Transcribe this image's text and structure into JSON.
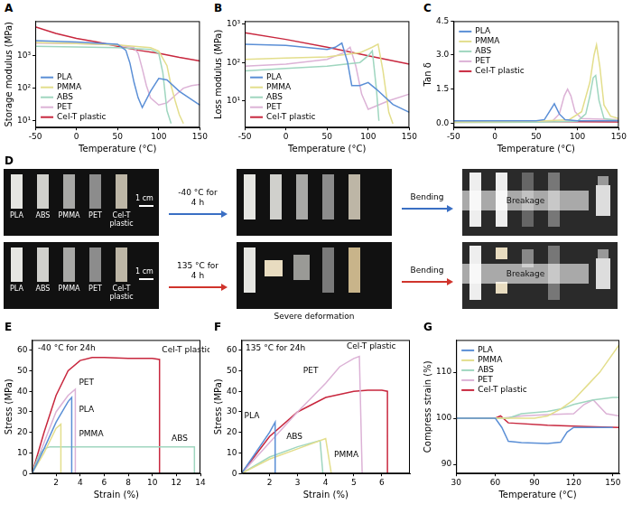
{
  "chart_data": [
    {
      "panel": "A",
      "type": "line",
      "x_label": "Temperature (°C)",
      "y_label": "Storage modulus (MPa)",
      "log": "y",
      "grid": false,
      "legend": "bottom-left",
      "xlim": [
        -50,
        150
      ],
      "xticks": [
        -50,
        0,
        50,
        100,
        150
      ],
      "ylim": [
        6,
        12000
      ],
      "yticks": [
        {
          "value": 10,
          "label": "10¹"
        },
        {
          "value": 100,
          "label": "10²"
        },
        {
          "value": 1000,
          "label": "10³"
        }
      ],
      "series": [
        {
          "name": "PLA",
          "color": "#5b8fd6",
          "x": [
            -50,
            0,
            50,
            60,
            65,
            70,
            75,
            80,
            90,
            100,
            110,
            125,
            150
          ],
          "values": [
            3000,
            2700,
            2300,
            1500,
            600,
            150,
            50,
            25,
            80,
            200,
            180,
            80,
            30
          ]
        },
        {
          "name": "PMMA",
          "color": "#e3de8c",
          "x": [
            -50,
            0,
            50,
            90,
            100,
            110,
            115,
            120,
            125,
            130
          ],
          "values": [
            2600,
            2400,
            2200,
            1800,
            1400,
            500,
            120,
            40,
            15,
            8
          ]
        },
        {
          "name": "ABS",
          "color": "#9fd6bf",
          "x": [
            -50,
            0,
            50,
            90,
            100,
            105,
            110,
            115
          ],
          "values": [
            2000,
            1900,
            1800,
            1600,
            1200,
            300,
            20,
            8
          ]
        },
        {
          "name": "PET",
          "color": "#dcb2d6",
          "x": [
            -50,
            0,
            50,
            70,
            75,
            80,
            85,
            90,
            100,
            110,
            120,
            130,
            140,
            150
          ],
          "values": [
            2500,
            2400,
            2200,
            1800,
            1200,
            400,
            120,
            50,
            30,
            35,
            60,
            100,
            120,
            130
          ]
        },
        {
          "name": "Cel-T plastic",
          "color": "#c8273e",
          "x": [
            -50,
            -25,
            0,
            25,
            50,
            75,
            100,
            125,
            150
          ],
          "values": [
            8000,
            5000,
            3500,
            2700,
            2000,
            1500,
            1200,
            900,
            700
          ]
        }
      ]
    },
    {
      "panel": "B",
      "type": "line",
      "x_label": "Temperature (°C)",
      "y_label": "Loss modulus (MPa)",
      "log": "y",
      "grid": false,
      "legend": "bottom-left",
      "xlim": [
        -50,
        150
      ],
      "xticks": [
        -50,
        0,
        50,
        100,
        150
      ],
      "ylim": [
        2,
        1200
      ],
      "yticks": [
        {
          "value": 10,
          "label": "10¹"
        },
        {
          "value": 100,
          "label": "10²"
        },
        {
          "value": 1000,
          "label": "10³"
        }
      ],
      "series": [
        {
          "name": "PLA",
          "color": "#5b8fd6",
          "x": [
            -50,
            0,
            50,
            60,
            68,
            75,
            80,
            90,
            100,
            110,
            130,
            150
          ],
          "values": [
            300,
            280,
            220,
            250,
            320,
            100,
            25,
            25,
            30,
            20,
            8,
            5
          ]
        },
        {
          "name": "PMMA",
          "color": "#e3de8c",
          "x": [
            -50,
            0,
            50,
            90,
            105,
            112,
            118,
            125,
            130
          ],
          "values": [
            120,
            130,
            140,
            180,
            250,
            300,
            60,
            5,
            2.5
          ]
        },
        {
          "name": "ABS",
          "color": "#9fd6bf",
          "x": [
            -50,
            0,
            50,
            90,
            100,
            105,
            110,
            113
          ],
          "values": [
            60,
            70,
            80,
            100,
            150,
            200,
            20,
            3
          ]
        },
        {
          "name": "PET",
          "color": "#dcb2d6",
          "x": [
            -50,
            0,
            50,
            70,
            78,
            85,
            92,
            100,
            125,
            150
          ],
          "values": [
            80,
            90,
            120,
            180,
            250,
            80,
            15,
            6,
            10,
            15
          ]
        },
        {
          "name": "Cel-T plastic",
          "color": "#c8273e",
          "x": [
            -50,
            0,
            50,
            100,
            150
          ],
          "values": [
            600,
            400,
            250,
            150,
            90
          ]
        }
      ]
    },
    {
      "panel": "C",
      "type": "line",
      "x_label": "Temperature (°C)",
      "y_label": "Tan δ",
      "grid": false,
      "legend": "top-left",
      "xlim": [
        -50,
        150
      ],
      "xticks": [
        -50,
        0,
        50,
        100,
        150
      ],
      "ylim": [
        -0.2,
        4.5
      ],
      "yticks": [
        {
          "value": 0,
          "label": "0.0"
        },
        1.5,
        {
          "value": 3,
          "label": "3.0"
        },
        4.5
      ],
      "series": [
        {
          "name": "PLA",
          "color": "#5b8fd6",
          "x": [
            -50,
            0,
            50,
            60,
            66,
            72,
            78,
            85,
            100,
            150
          ],
          "values": [
            0.1,
            0.1,
            0.1,
            0.15,
            0.5,
            0.85,
            0.4,
            0.15,
            0.1,
            0.1
          ]
        },
        {
          "name": "PMMA",
          "color": "#e3de8c",
          "x": [
            -50,
            0,
            50,
            90,
            105,
            115,
            120,
            123,
            127,
            132,
            140,
            150
          ],
          "values": [
            0.05,
            0.06,
            0.08,
            0.15,
            0.5,
            1.8,
            3.0,
            3.45,
            2.5,
            0.8,
            0.3,
            0.2
          ]
        },
        {
          "name": "ABS",
          "color": "#9fd6bf",
          "x": [
            -50,
            0,
            50,
            100,
            110,
            115,
            119,
            122,
            126,
            132,
            150
          ],
          "values": [
            0.03,
            0.03,
            0.04,
            0.08,
            0.4,
            1.2,
            2.0,
            2.1,
            1.0,
            0.2,
            0.1
          ]
        },
        {
          "name": "PET",
          "color": "#dcb2d6",
          "x": [
            -50,
            0,
            50,
            70,
            78,
            84,
            88,
            92,
            97,
            105,
            150
          ],
          "values": [
            0.03,
            0.04,
            0.05,
            0.1,
            0.4,
            1.2,
            1.5,
            1.2,
            0.5,
            0.2,
            0.15
          ]
        },
        {
          "name": "Cel-T plastic",
          "color": "#c8273e",
          "x": [
            -50,
            0,
            50,
            100,
            150
          ],
          "values": [
            0.1,
            0.08,
            0.07,
            0.06,
            0.05
          ]
        }
      ]
    },
    {
      "panel": "E",
      "type": "line",
      "x_label": "Strain (%)",
      "y_label": "Stress (MPa)",
      "grid": false,
      "xlim": [
        0,
        14
      ],
      "xticks": [
        2,
        4,
        6,
        8,
        10,
        12,
        14
      ],
      "ylim": [
        0,
        65
      ],
      "yticks": [
        0,
        10,
        20,
        30,
        40,
        50,
        60
      ],
      "annotations": [
        {
          "text": "-40 °C for 24h",
          "x": 0.5,
          "y": 61
        },
        {
          "text": "PET",
          "x": 3.9,
          "y": 44
        },
        {
          "text": "PLA",
          "x": 3.9,
          "y": 31
        },
        {
          "text": "PMMA",
          "x": 3.9,
          "y": 19
        },
        {
          "text": "Cel-T plastic",
          "x": 10.8,
          "y": 60
        },
        {
          "text": "ABS",
          "x": 11.6,
          "y": 17
        }
      ],
      "series": [
        {
          "name": "PLA",
          "color": "#5b8fd6",
          "x": [
            0,
            1,
            2,
            3,
            3.3,
            3.3
          ],
          "values": [
            0,
            12,
            25,
            35,
            37,
            0
          ]
        },
        {
          "name": "PMMA",
          "color": "#e3de8c",
          "x": [
            0,
            1,
            2,
            2.4,
            2.4
          ],
          "values": [
            0,
            10,
            22,
            24,
            0
          ]
        },
        {
          "name": "ABS",
          "color": "#9fd6bf",
          "x": [
            0,
            0.5,
            1,
            1.5,
            2,
            6,
            10,
            13.5,
            13.5
          ],
          "values": [
            0,
            8,
            12,
            13,
            13,
            13,
            13,
            13,
            0
          ]
        },
        {
          "name": "PET",
          "color": "#dcb2d6",
          "x": [
            0,
            1,
            2,
            3,
            3.6,
            3.6
          ],
          "values": [
            0,
            15,
            30,
            38,
            41,
            0
          ]
        },
        {
          "name": "Cel-T plastic",
          "color": "#c8273e",
          "x": [
            0,
            1,
            2,
            3,
            4,
            5,
            6,
            8,
            10,
            10.6,
            10.6
          ],
          "values": [
            0,
            20,
            38,
            50,
            55,
            56.5,
            56.5,
            56,
            56,
            55.5,
            0
          ]
        }
      ]
    },
    {
      "panel": "F",
      "type": "line",
      "x_label": "Strain (%)",
      "y_label": "Stress (MPa)",
      "grid": false,
      "xlim": [
        1,
        7
      ],
      "xticks": [
        2,
        3,
        4,
        5,
        6
      ],
      "ylim": [
        0,
        65
      ],
      "yticks": [
        0,
        10,
        20,
        30,
        40,
        50,
        60
      ],
      "annotations": [
        {
          "text": "135 °C for 24h",
          "x": 1.15,
          "y": 61
        },
        {
          "text": "PET",
          "x": 3.2,
          "y": 50
        },
        {
          "text": "Cel-T plastic",
          "x": 4.75,
          "y": 62
        },
        {
          "text": "PLA",
          "x": 1.1,
          "y": 28
        },
        {
          "text": "ABS",
          "x": 2.6,
          "y": 18
        },
        {
          "text": "PMMA",
          "x": 4.3,
          "y": 9
        }
      ],
      "series": [
        {
          "name": "PLA",
          "color": "#5b8fd6",
          "x": [
            1,
            1.5,
            2,
            2.2,
            2.2
          ],
          "values": [
            0,
            10,
            20,
            25,
            0
          ]
        },
        {
          "name": "PMMA",
          "color": "#e3de8c",
          "x": [
            1,
            2,
            3,
            4,
            4.2
          ],
          "values": [
            0,
            7,
            12,
            17,
            0
          ]
        },
        {
          "name": "ABS",
          "color": "#9fd6bf",
          "x": [
            1,
            2,
            3,
            3.8,
            3.9
          ],
          "values": [
            0,
            8,
            13,
            16,
            0
          ]
        },
        {
          "name": "PET",
          "color": "#dcb2d6",
          "x": [
            1,
            2,
            3,
            4,
            4.5,
            5,
            5.2,
            5.3
          ],
          "values": [
            0,
            15,
            30,
            44,
            52,
            56,
            57,
            0
          ]
        },
        {
          "name": "Cel-T plastic",
          "color": "#c8273e",
          "x": [
            1,
            2,
            3,
            4,
            5,
            5.5,
            6,
            6.2,
            6.2
          ],
          "values": [
            0,
            18,
            30,
            37,
            40,
            40.5,
            40.5,
            40,
            0
          ]
        }
      ]
    },
    {
      "panel": "G",
      "type": "line",
      "x_label": "Temperature (°C)",
      "y_label": "Compress strain (%)",
      "grid": false,
      "legend": "top-left",
      "xlim": [
        30,
        155
      ],
      "xticks": [
        30,
        60,
        90,
        120,
        150
      ],
      "ylim": [
        88,
        117
      ],
      "yticks": [
        90,
        100,
        110
      ],
      "series": [
        {
          "name": "PLA",
          "color": "#5b8fd6",
          "x": [
            30,
            60,
            65,
            70,
            80,
            100,
            110,
            115,
            120,
            150
          ],
          "values": [
            100,
            100,
            98,
            95,
            94.7,
            94.5,
            94.8,
            97,
            98,
            98
          ]
        },
        {
          "name": "PMMA",
          "color": "#e3de8c",
          "x": [
            30,
            60,
            90,
            100,
            110,
            120,
            130,
            140,
            155
          ],
          "values": [
            100,
            100,
            100,
            100.5,
            102,
            104,
            107,
            110,
            116
          ]
        },
        {
          "name": "ABS",
          "color": "#9fd6bf",
          "x": [
            30,
            60,
            70,
            80,
            100,
            110,
            120,
            135,
            150,
            155
          ],
          "values": [
            100,
            100,
            100,
            101,
            101.5,
            102,
            103,
            104,
            104.5,
            104.5
          ]
        },
        {
          "name": "PET",
          "color": "#dcb2d6",
          "x": [
            30,
            60,
            65,
            80,
            100,
            120,
            128,
            135,
            145,
            155
          ],
          "values": [
            100,
            100,
            100,
            100.5,
            100.8,
            101,
            103,
            104,
            101,
            100.5
          ]
        },
        {
          "name": "Cel-T plastic",
          "color": "#c8273e",
          "x": [
            30,
            60,
            64,
            70,
            100,
            130,
            155
          ],
          "values": [
            100,
            100,
            100.5,
            99,
            98.5,
            98.2,
            98
          ]
        }
      ]
    }
  ],
  "panel_D": {
    "panel": "D",
    "samples": [
      "PLA",
      "ABS",
      "PMMA",
      "PET",
      "Cel-T plastic"
    ],
    "scale_bar": "1 cm",
    "rows": [
      {
        "condition": "-40 °C for 4 h",
        "step": "Bending",
        "result": "Breakage"
      },
      {
        "condition": "135 °C for 4 h",
        "step": "Bending",
        "result": "Breakage",
        "note": "Severe deformation"
      }
    ]
  }
}
